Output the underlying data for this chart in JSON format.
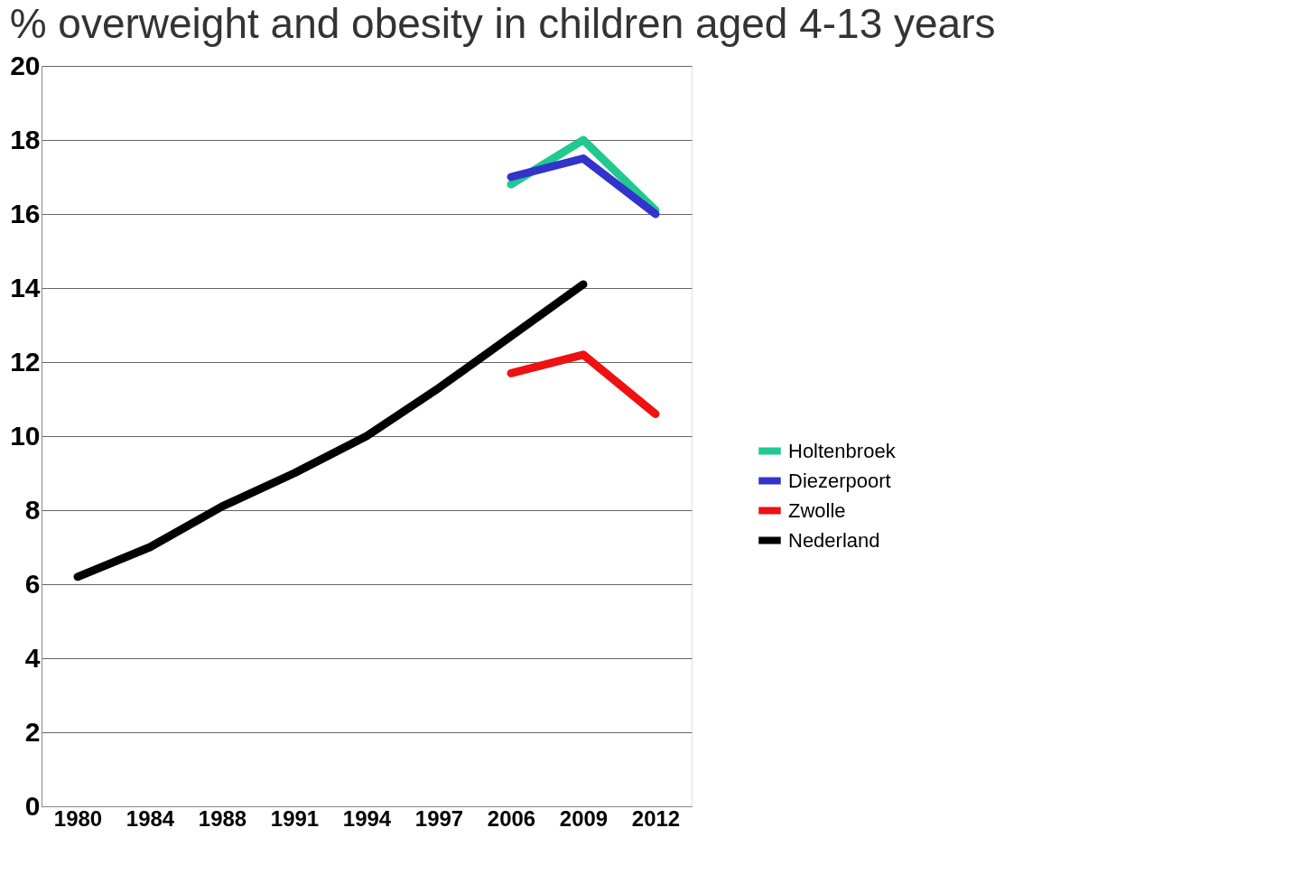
{
  "chart_data": {
    "type": "line",
    "title": "% overweight and obesity in children aged 4-13 years",
    "categories": [
      "1980",
      "1984",
      "1988",
      "1991",
      "1994",
      "1997",
      "2006",
      "2009",
      "2012"
    ],
    "series": [
      {
        "name": "Holtenbroek",
        "color": "#1fc98f",
        "values": [
          null,
          null,
          null,
          null,
          null,
          null,
          16.8,
          18.0,
          16.1
        ]
      },
      {
        "name": "Diezerpoort",
        "color": "#3333cc",
        "values": [
          null,
          null,
          null,
          null,
          null,
          null,
          17.0,
          17.5,
          16.0
        ]
      },
      {
        "name": "Zwolle",
        "color": "#ee1111",
        "values": [
          null,
          null,
          null,
          null,
          null,
          null,
          11.7,
          12.2,
          10.6
        ]
      },
      {
        "name": "Nederland",
        "color": "#000000",
        "values": [
          6.2,
          7.0,
          8.1,
          9.0,
          10.0,
          11.3,
          12.7,
          14.1,
          null
        ]
      }
    ],
    "ylim": [
      0,
      20
    ],
    "yticks": [
      0,
      2,
      4,
      6,
      8,
      10,
      12,
      14,
      16,
      18,
      20
    ],
    "grid": "y",
    "legend": "right",
    "marker": "none",
    "line_style": "solid"
  }
}
